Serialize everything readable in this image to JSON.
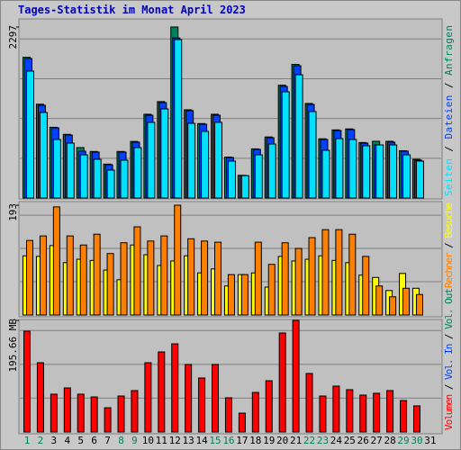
{
  "chart_data": [
    {
      "type": "bar",
      "title": "Tages-Statistik im Monat April 2023",
      "ylim": [
        0,
        2297
      ],
      "yticks": [
        2297
      ],
      "series": [
        {
          "name": "Anfragen",
          "color": "#00805c",
          "values": [
            1890,
            1260,
            950,
            855,
            677,
            625,
            455,
            625,
            760,
            1125,
            1295,
            2297,
            1185,
            1000,
            1125,
            550,
            305,
            660,
            820,
            1515,
            1795,
            1270,
            795,
            915,
            928,
            745,
            762,
            762,
            635,
            520,
            null
          ]
        },
        {
          "name": "Dateien",
          "color": "#0040ff",
          "values": [
            1874,
            1245,
            943,
            846,
            629,
            617,
            447,
            617,
            750,
            1112,
            1282,
            2150,
            1173,
            991,
            1112,
            544,
            302,
            653,
            810,
            1499,
            1777,
            1257,
            786,
            907,
            919,
            737,
            713,
            750,
            629,
            508,
            null
          ]
        },
        {
          "name": "Seiten",
          "color": "#00e0ff",
          "values": [
            1705,
            1149,
            786,
            737,
            580,
            520,
            375,
            508,
            677,
            1016,
            1197,
            2128,
            1003,
            895,
            1016,
            496,
            300,
            580,
            725,
            1427,
            1656,
            1161,
            641,
            798,
            786,
            701,
            713,
            713,
            580,
            496,
            null
          ]
        }
      ]
    },
    {
      "type": "bar",
      "ylim": [
        0,
        193
      ],
      "yticks": [
        193
      ],
      "series": [
        {
          "name": "Besuche",
          "color": "#ffff00",
          "values": [
            104,
            103,
            122,
            92,
            98,
            96,
            79,
            62,
            123,
            106,
            87,
            95,
            104,
            74,
            81,
            51,
            71,
            74,
            49,
            103,
            95,
            98,
            104,
            96,
            92,
            70,
            66,
            43,
            73,
            47,
            null
          ]
        },
        {
          "name": "Rechner",
          "color": "#ff8000",
          "values": [
            131,
            139,
            190,
            139,
            123,
            142,
            108,
            127,
            155,
            130,
            139,
            193,
            134,
            130,
            128,
            71,
            71,
            128,
            89,
            127,
            117,
            136,
            150,
            150,
            142,
            103,
            51,
            32,
            47,
            36,
            null
          ]
        }
      ]
    },
    {
      "type": "bar",
      "ylim": [
        0,
        195.66
      ],
      "yticks": [
        {
          "value": 195.66,
          "label": "195.66 MB"
        }
      ],
      "categories": [
        "1",
        "2",
        "3",
        "4",
        "5",
        "6",
        "7",
        "8",
        "9",
        "10",
        "11",
        "12",
        "13",
        "14",
        "15",
        "16",
        "17",
        "18",
        "19",
        "20",
        "21",
        "22",
        "23",
        "24",
        "25",
        "26",
        "27",
        "28",
        "29",
        "30",
        "31"
      ],
      "category_colors": [
        "#00805c",
        "#00805c",
        "#000000",
        "#000000",
        "#000000",
        "#000000",
        "#000000",
        "#00805c",
        "#00805c",
        "#000000",
        "#000000",
        "#000000",
        "#000000",
        "#000000",
        "#00805c",
        "#00805c",
        "#000000",
        "#000000",
        "#000000",
        "#000000",
        "#000000",
        "#00805c",
        "#00805c",
        "#000000",
        "#000000",
        "#000000",
        "#000000",
        "#000000",
        "#00805c",
        "#00805c",
        "#000000"
      ],
      "series": [
        {
          "name": "Volumen",
          "color": "#ff0000",
          "values": [
            176.7,
            121.5,
            66.3,
            77.3,
            66.3,
            61.5,
            42.6,
            63.1,
            72.6,
            121.5,
            140.4,
            154.6,
            118.4,
            94.7,
            118.4,
            60.0,
            33.1,
            69.4,
            89.9,
            173.6,
            195.66,
            102.6,
            63.1,
            80.5,
            74.2,
            64.7,
            67.9,
            72.6,
            55.2,
            45.8,
            null
          ]
        },
        {
          "name": "Vol. In",
          "color": "#0040ff"
        },
        {
          "name": "Vol. Out",
          "color": "#00805c"
        }
      ]
    }
  ]
}
